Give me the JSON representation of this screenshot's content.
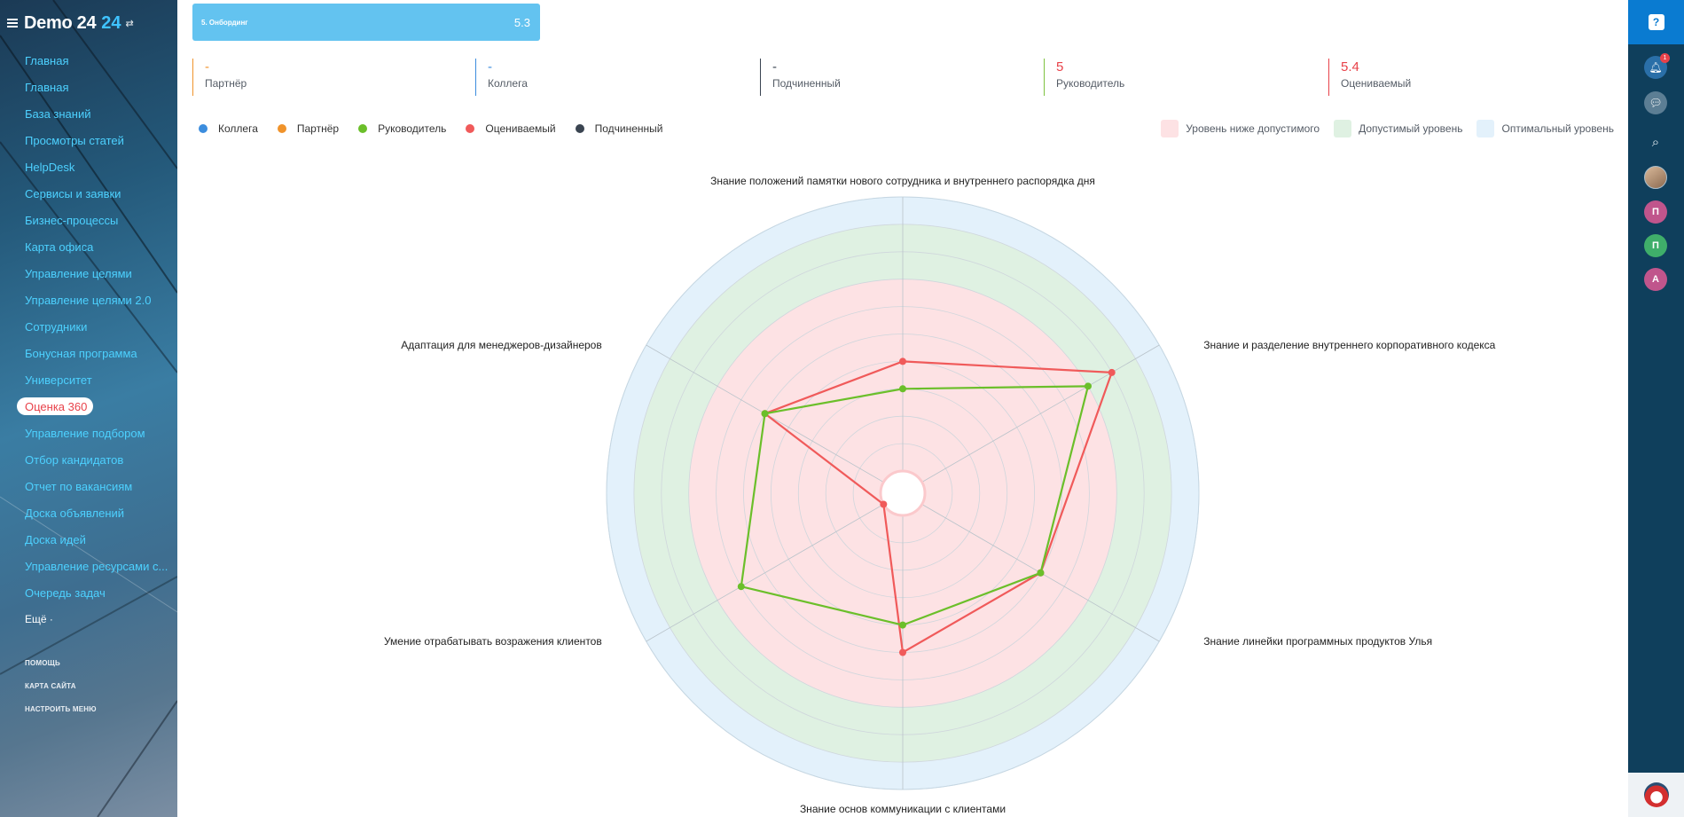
{
  "app": {
    "logo_text": "Demo 24",
    "logo_number": "24",
    "logo_swap_icon": "swap-icon",
    "menu_icon": "hamburger-icon"
  },
  "sidebar": {
    "items": [
      {
        "label": "Главная"
      },
      {
        "label": "Главная"
      },
      {
        "label": "База знаний"
      },
      {
        "label": "Просмотры статей"
      },
      {
        "label": "HelpDesk"
      },
      {
        "label": "Сервисы и заявки"
      },
      {
        "label": "Бизнес-процессы"
      },
      {
        "label": "Карта офиса"
      },
      {
        "label": "Управление целями"
      },
      {
        "label": "Управление целями 2.0"
      },
      {
        "label": "Сотрудники"
      },
      {
        "label": "Бонусная программа"
      },
      {
        "label": "Университет"
      },
      {
        "label": "Оценка 360",
        "active": true
      },
      {
        "label": "Управление подбором"
      },
      {
        "label": "Отбор кандидатов"
      },
      {
        "label": "Отчет по вакансиям"
      },
      {
        "label": "Доска объявлений"
      },
      {
        "label": "Доска идей"
      },
      {
        "label": "Управление ресурсами с..."
      },
      {
        "label": "Очередь задач"
      }
    ],
    "more_label": "Ещё ·",
    "footer": [
      "ПОМОЩЬ",
      "КАРТА САЙТА",
      "НАСТРОИТЬ МЕНЮ"
    ]
  },
  "rightbar": {
    "help_label": "?",
    "notification_count": "1",
    "avatar_letters": [
      "П",
      "П",
      "А"
    ],
    "colors": {
      "panel": "#0f3f5c",
      "top": "#0a7bd1",
      "letter_1": "#c0558c",
      "letter_2": "#3fae6a",
      "letter_3": "#c0558c"
    }
  },
  "card": {
    "label": "5. Онбординг",
    "score": "5.3",
    "color": "#63c3f0"
  },
  "scores": [
    {
      "value": "-",
      "label": "Партнёр",
      "color": "#f0932b"
    },
    {
      "value": "-",
      "label": "Коллега",
      "color": "#3c8dde"
    },
    {
      "value": "-",
      "label": "Подчиненный",
      "color": "#3a4451"
    },
    {
      "value": "5",
      "label": "Руководитель",
      "color": "#e8424a",
      "border": "#7fc241"
    },
    {
      "value": "5.4",
      "label": "Оцениваемый",
      "color": "#e8424a",
      "border": "#e8424a"
    }
  ],
  "legend": [
    {
      "label": "Коллега",
      "color": "#3c8dde"
    },
    {
      "label": "Партнёр",
      "color": "#f0932b"
    },
    {
      "label": "Руководитель",
      "color": "#6bbf2a"
    },
    {
      "label": "Оцениваемый",
      "color": "#f05a5a"
    },
    {
      "label": "Подчиненный",
      "color": "#3a4451"
    }
  ],
  "zone_legend": [
    {
      "label": "Уровень ниже допустимого",
      "color": "#fde2e4"
    },
    {
      "label": "Допустимый уровень",
      "color": "#dff1e2"
    },
    {
      "label": "Оптимальный уровень",
      "color": "#e3f1fb"
    }
  ],
  "chart_data": {
    "type": "radar",
    "axes": [
      "Знание положений памятки нового сотрудника и внутреннего распорядка дня",
      "Знание и разделение внутреннего корпоративного кодекса",
      "Знание линейки программных продуктов Улья",
      "Знание основ коммуникации с клиентами",
      "Умение отрабатывать возражения клиентов",
      "Адаптация для менеджеров-дизайнеров"
    ],
    "rmax": 10,
    "ring_count": 10,
    "zones": {
      "below_acceptable": [
        0,
        7
      ],
      "acceptable": [
        7,
        9
      ],
      "optimal": [
        9,
        10
      ]
    },
    "series": [
      {
        "name": "Оцениваемый",
        "color": "#f05a5a",
        "values": [
          4,
          8,
          5,
          5,
          0,
          5
        ]
      },
      {
        "name": "Руководитель",
        "color": "#6bbf2a",
        "values": [
          3,
          7,
          5,
          4,
          6,
          5
        ]
      }
    ]
  }
}
